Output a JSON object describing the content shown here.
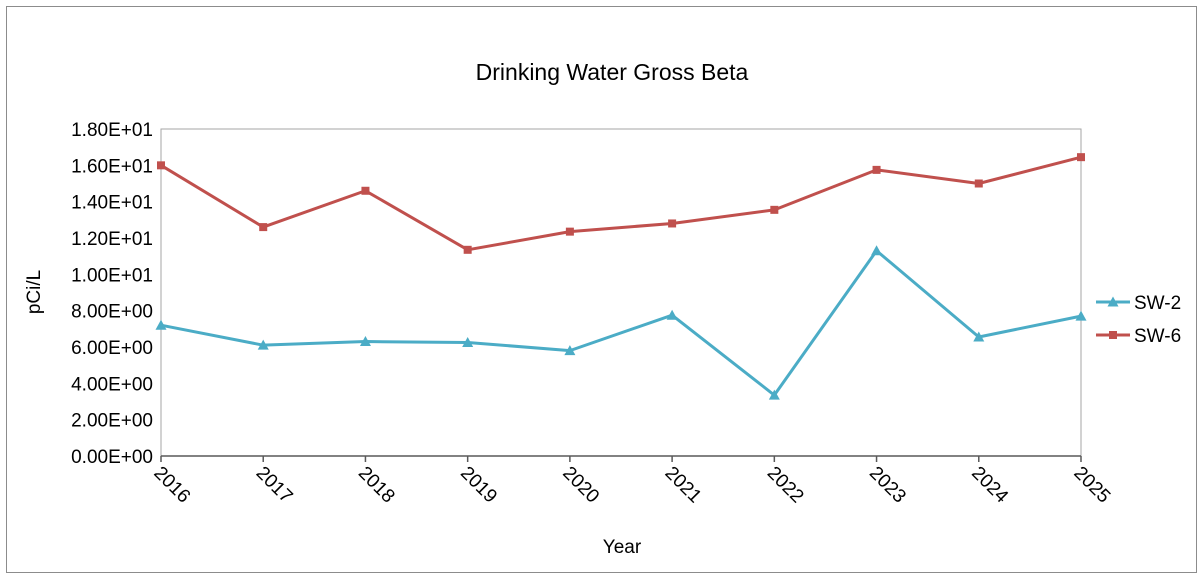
{
  "chart_data": {
    "type": "line",
    "title": "Drinking Water Gross Beta",
    "xlabel": "Year",
    "ylabel": "pCi/L",
    "x": [
      "2016",
      "2017",
      "2018",
      "2019",
      "2020",
      "2021",
      "2022",
      "2023",
      "2024",
      "2025"
    ],
    "ylim": [
      0,
      18
    ],
    "y_ticks": [
      {
        "value": 0,
        "label": "0.00E+00"
      },
      {
        "value": 2,
        "label": "2.00E+00"
      },
      {
        "value": 4,
        "label": "4.00E+00"
      },
      {
        "value": 6,
        "label": "6.00E+00"
      },
      {
        "value": 8,
        "label": "8.00E+00"
      },
      {
        "value": 10,
        "label": "1.00E+01"
      },
      {
        "value": 12,
        "label": "1.20E+01"
      },
      {
        "value": 14,
        "label": "1.40E+01"
      },
      {
        "value": 16,
        "label": "1.60E+01"
      },
      {
        "value": 18,
        "label": "1.80E+01"
      }
    ],
    "grid": false,
    "legend_position": "right",
    "series": [
      {
        "name": "SW-2",
        "marker": "triangle",
        "color": "#4bacc6",
        "values": [
          7.2,
          6.1,
          6.3,
          6.25,
          5.8,
          7.75,
          3.35,
          11.3,
          6.55,
          7.7
        ]
      },
      {
        "name": "SW-6",
        "marker": "square",
        "color": "#c0504d",
        "values": [
          16.0,
          12.6,
          14.6,
          11.35,
          12.35,
          12.8,
          13.55,
          15.75,
          15.0,
          16.45
        ]
      }
    ]
  }
}
